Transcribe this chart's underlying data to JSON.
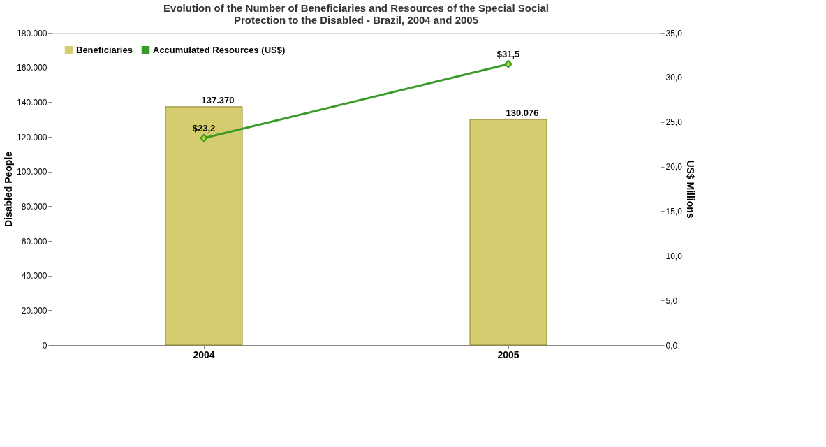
{
  "chart_data": {
    "type": "bar",
    "title": "Evolution of the Number of Beneficiaries and Resources  of the Special Social\nProtection to the Disabled - Brazil, 2004 and 2005",
    "categories": [
      "2004",
      "2005"
    ],
    "ylabel": "Disabled People",
    "y2label": "US$ Millions",
    "ylim": [
      0,
      180000
    ],
    "yticks": [
      0,
      {
        "value": 20000,
        "label": "20.000"
      },
      {
        "value": 40000,
        "label": "40.000"
      },
      {
        "value": 60000,
        "label": "60.000"
      },
      {
        "value": 80000,
        "label": "80.000"
      },
      {
        "value": 100000,
        "label": "100.000"
      },
      {
        "value": 120000,
        "label": "120.000"
      },
      {
        "value": 140000,
        "label": "140.000"
      },
      {
        "value": 160000,
        "label": "160.000"
      },
      {
        "value": 180000,
        "label": "180.000"
      }
    ],
    "y2lim": [
      0,
      35
    ],
    "y2ticks": [
      {
        "value": 0,
        "label": "0,0"
      },
      {
        "value": 5,
        "label": "5,0"
      },
      {
        "value": 10,
        "label": "10,0"
      },
      {
        "value": 15,
        "label": "15,0"
      },
      {
        "value": 20,
        "label": "20,0"
      },
      {
        "value": 25,
        "label": "25,0"
      },
      {
        "value": 30,
        "label": "30,0"
      },
      {
        "value": 35,
        "label": "35,0"
      }
    ],
    "series": [
      {
        "name": "Beneficiaries",
        "color": "#d4cc6e",
        "values": [
          137370,
          130076
        ],
        "value_labels": [
          "137.370",
          "130.076"
        ]
      },
      {
        "name": "Accumulated Resources (US$)",
        "type": "line",
        "axis": "y2",
        "color": "#3a9a2a",
        "values": [
          23.2,
          31.5
        ],
        "value_labels": [
          "$23,2",
          "$31,5"
        ]
      }
    ],
    "marker": "diamond",
    "line_style": "solid",
    "grid": false,
    "legend": "top left"
  }
}
